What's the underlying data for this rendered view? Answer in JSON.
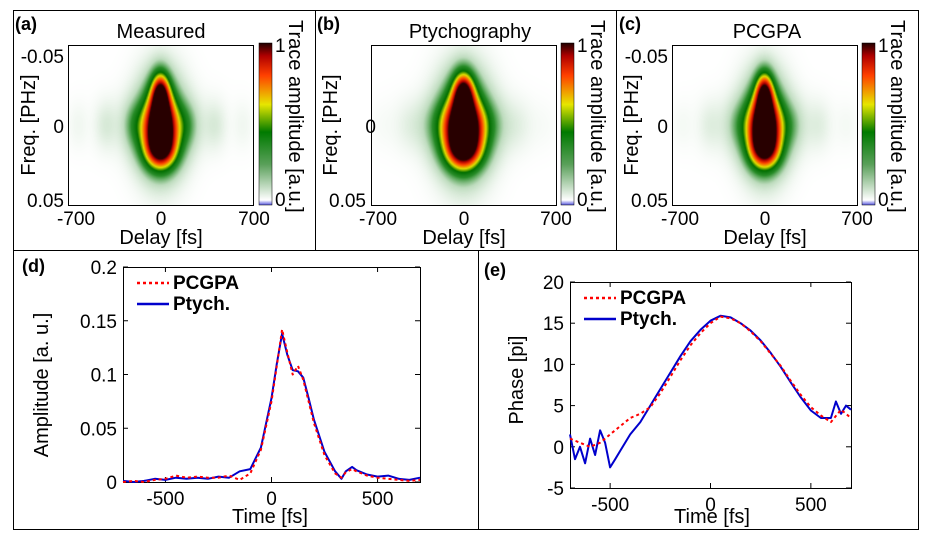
{
  "chart_data": [
    {
      "panel": "(a)",
      "type": "heatmap",
      "title": "Measured",
      "xlabel": "Delay [fs]",
      "ylabel": "Freq. [PHz]",
      "xticks": [
        "-700",
        "0",
        "700"
      ],
      "yticks": [
        "-0.05",
        "0",
        "0.05"
      ],
      "xlim": [
        -700,
        700
      ],
      "ylim": [
        -0.05,
        0.05
      ],
      "colorbar": {
        "label": "Trace amplitude [a.u.]",
        "min_label": "0",
        "max_label": "1",
        "range": [
          0,
          1
        ]
      },
      "shape": {
        "spread_x": 1.0,
        "spread_y": 1.0,
        "wings": 1.0,
        "stripes": 1.0
      }
    },
    {
      "panel": "(b)",
      "type": "heatmap",
      "title": "Ptychography",
      "xlabel": "Delay [fs]",
      "ylabel": "Freq. [PHz]",
      "xticks": [
        "-700",
        "0",
        "700"
      ],
      "yticks": [
        "-0.05",
        "0",
        "0.05"
      ],
      "xlim": [
        -700,
        700
      ],
      "ylim": [
        -0.05,
        0.05
      ],
      "colorbar": {
        "label": "Trace amplitude [a.u.]",
        "min_label": "0",
        "max_label": "1",
        "range": [
          0,
          1
        ]
      },
      "shape": {
        "spread_x": 1.12,
        "spread_y": 1.06,
        "wings": 1.3,
        "stripes": 0.2
      }
    },
    {
      "panel": "(c)",
      "type": "heatmap",
      "title": "PCGPA",
      "xlabel": "Delay [fs]",
      "ylabel": "Freq. [PHz]",
      "xticks": [
        "-700",
        "0",
        "700"
      ],
      "yticks": [
        "-0.05",
        "0",
        "0.05"
      ],
      "xlim": [
        -700,
        700
      ],
      "ylim": [
        -0.05,
        0.05
      ],
      "colorbar": {
        "label": "Trace amplitude [a.u.]",
        "min_label": "0",
        "max_label": "1",
        "range": [
          0,
          1
        ]
      },
      "shape": {
        "spread_x": 0.96,
        "spread_y": 0.98,
        "wings": 1.0,
        "stripes": 0.6
      }
    },
    {
      "panel": "(d)",
      "type": "line",
      "xlabel": "Time [fs]",
      "ylabel": "Amplitude [a. u.]",
      "xlim": [
        -700,
        700
      ],
      "ylim": [
        0,
        0.2
      ],
      "xticks": [
        -500,
        0,
        500
      ],
      "xtick_labels": [
        "-500",
        "0",
        "500"
      ],
      "yticks": [
        0,
        0.05,
        0.1,
        0.15,
        0.2
      ],
      "ytick_labels": [
        "0",
        "0.05",
        "0.1",
        "0.15",
        "0.2"
      ],
      "legend": "top-left",
      "series": [
        {
          "name": "PCGPA",
          "color": "#ff0000",
          "style": "dotted",
          "x": [
            -700,
            -650,
            -600,
            -550,
            -500,
            -450,
            -400,
            -350,
            -300,
            -250,
            -200,
            -150,
            -100,
            -50,
            0,
            25,
            50,
            75,
            100,
            125,
            150,
            175,
            200,
            250,
            300,
            330,
            350,
            380,
            400,
            450,
            500,
            550,
            600,
            650,
            700
          ],
          "y": [
            0.0,
            0.001,
            0.0,
            0.002,
            0.003,
            0.006,
            0.004,
            0.005,
            0.004,
            0.004,
            0.006,
            0.002,
            0.008,
            0.03,
            0.075,
            0.108,
            0.142,
            0.12,
            0.1,
            0.108,
            0.095,
            0.075,
            0.055,
            0.025,
            0.008,
            0.004,
            0.009,
            0.012,
            0.01,
            0.006,
            0.004,
            0.003,
            0.002,
            0.001,
            0.002
          ]
        },
        {
          "name": "Ptych.",
          "color": "#0000cc",
          "style": "solid",
          "x": [
            -700,
            -650,
            -600,
            -550,
            -500,
            -450,
            -400,
            -350,
            -300,
            -250,
            -200,
            -150,
            -100,
            -50,
            0,
            25,
            50,
            75,
            100,
            125,
            150,
            175,
            200,
            250,
            300,
            330,
            350,
            380,
            400,
            450,
            500,
            550,
            600,
            650,
            700
          ],
          "y": [
            0.001,
            0.0,
            0.001,
            0.003,
            0.002,
            0.004,
            0.003,
            0.004,
            0.003,
            0.005,
            0.004,
            0.01,
            0.012,
            0.032,
            0.078,
            0.11,
            0.138,
            0.118,
            0.104,
            0.103,
            0.097,
            0.078,
            0.058,
            0.028,
            0.01,
            0.003,
            0.01,
            0.014,
            0.011,
            0.007,
            0.005,
            0.006,
            0.003,
            0.002,
            0.004
          ]
        }
      ]
    },
    {
      "panel": "(e)",
      "type": "line",
      "xlabel": "Time [fs]",
      "ylabel": "Phase [pi]",
      "xlim": [
        -700,
        700
      ],
      "ylim": [
        -5,
        20
      ],
      "xticks": [
        -500,
        0,
        500
      ],
      "xtick_labels": [
        "-500",
        "0",
        "500"
      ],
      "yticks": [
        -5,
        0,
        5,
        10,
        15,
        20
      ],
      "ytick_labels": [
        "-5",
        "0",
        "5",
        "10",
        "15",
        "20"
      ],
      "legend": "top-left",
      "series": [
        {
          "name": "PCGPA",
          "color": "#ff0000",
          "style": "dotted",
          "x": [
            -700,
            -650,
            -600,
            -550,
            -500,
            -450,
            -400,
            -350,
            -300,
            -250,
            -200,
            -150,
            -100,
            -50,
            0,
            50,
            100,
            150,
            200,
            250,
            300,
            350,
            400,
            450,
            500,
            550,
            600,
            650,
            700
          ],
          "y": [
            1.0,
            0.5,
            0.0,
            0.5,
            1.5,
            2.5,
            3.5,
            4.0,
            4.8,
            6.5,
            8.5,
            10.5,
            12.3,
            13.8,
            15.0,
            15.8,
            15.6,
            15.0,
            14.0,
            12.8,
            11.3,
            9.8,
            8.0,
            6.3,
            4.8,
            3.8,
            3.0,
            4.5,
            3.5
          ]
        },
        {
          "name": "Ptych.",
          "color": "#0000cc",
          "style": "solid",
          "x": [
            -700,
            -675,
            -650,
            -625,
            -600,
            -575,
            -550,
            -525,
            -500,
            -475,
            -450,
            -400,
            -350,
            -300,
            -250,
            -200,
            -150,
            -100,
            -50,
            0,
            50,
            100,
            150,
            200,
            250,
            300,
            350,
            400,
            450,
            500,
            550,
            600,
            625,
            650,
            675,
            700
          ],
          "y": [
            1.5,
            -1.5,
            0.0,
            -2.0,
            1.0,
            -1.0,
            2.0,
            0.5,
            -2.5,
            -1.5,
            -0.5,
            1.5,
            3.0,
            5.0,
            7.0,
            9.0,
            11.0,
            12.8,
            14.2,
            15.3,
            15.9,
            15.7,
            15.0,
            14.1,
            12.9,
            11.4,
            9.7,
            7.8,
            6.0,
            4.4,
            3.5,
            3.5,
            5.5,
            4.0,
            5.0,
            4.5
          ]
        }
      ]
    }
  ]
}
